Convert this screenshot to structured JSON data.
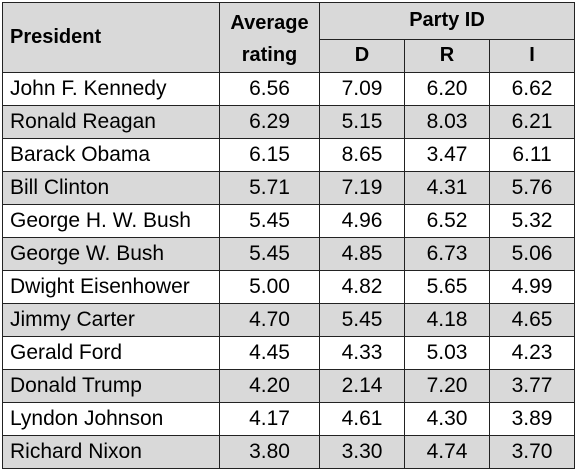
{
  "chart_data": {
    "type": "table",
    "header": {
      "president": "President",
      "average_top": "Average",
      "average_bottom": "rating",
      "party_group": "Party ID",
      "party_cols": [
        "D",
        "R",
        "I"
      ]
    },
    "rows": [
      {
        "president": "John F. Kennedy",
        "average": "6.56",
        "D": "7.09",
        "R": "6.20",
        "I": "6.62"
      },
      {
        "president": "Ronald Reagan",
        "average": "6.29",
        "D": "5.15",
        "R": "8.03",
        "I": "6.21"
      },
      {
        "president": "Barack Obama",
        "average": "6.15",
        "D": "8.65",
        "R": "3.47",
        "I": "6.11"
      },
      {
        "president": "Bill Clinton",
        "average": "5.71",
        "D": "7.19",
        "R": "4.31",
        "I": "5.76"
      },
      {
        "president": "George H. W. Bush",
        "average": "5.45",
        "D": "4.96",
        "R": "6.52",
        "I": "5.32"
      },
      {
        "president": "George W. Bush",
        "average": "5.45",
        "D": "4.85",
        "R": "6.73",
        "I": "5.06"
      },
      {
        "president": "Dwight Eisenhower",
        "average": "5.00",
        "D": "4.82",
        "R": "5.65",
        "I": "4.99"
      },
      {
        "president": "Jimmy Carter",
        "average": "4.70",
        "D": "5.45",
        "R": "4.18",
        "I": "4.65"
      },
      {
        "president": "Gerald Ford",
        "average": "4.45",
        "D": "4.33",
        "R": "5.03",
        "I": "4.23"
      },
      {
        "president": "Donald Trump",
        "average": "4.20",
        "D": "2.14",
        "R": "7.20",
        "I": "3.77"
      },
      {
        "president": "Lyndon Johnson",
        "average": "4.17",
        "D": "4.61",
        "R": "4.30",
        "I": "3.89"
      },
      {
        "president": "Richard Nixon",
        "average": "3.80",
        "D": "3.30",
        "R": "4.74",
        "I": "3.70"
      }
    ],
    "colors": {
      "header_bg": "#d9d9d9",
      "stripe_bg": "#d9d9d9",
      "row_bg": "#ffffff",
      "border": "#222222"
    }
  }
}
